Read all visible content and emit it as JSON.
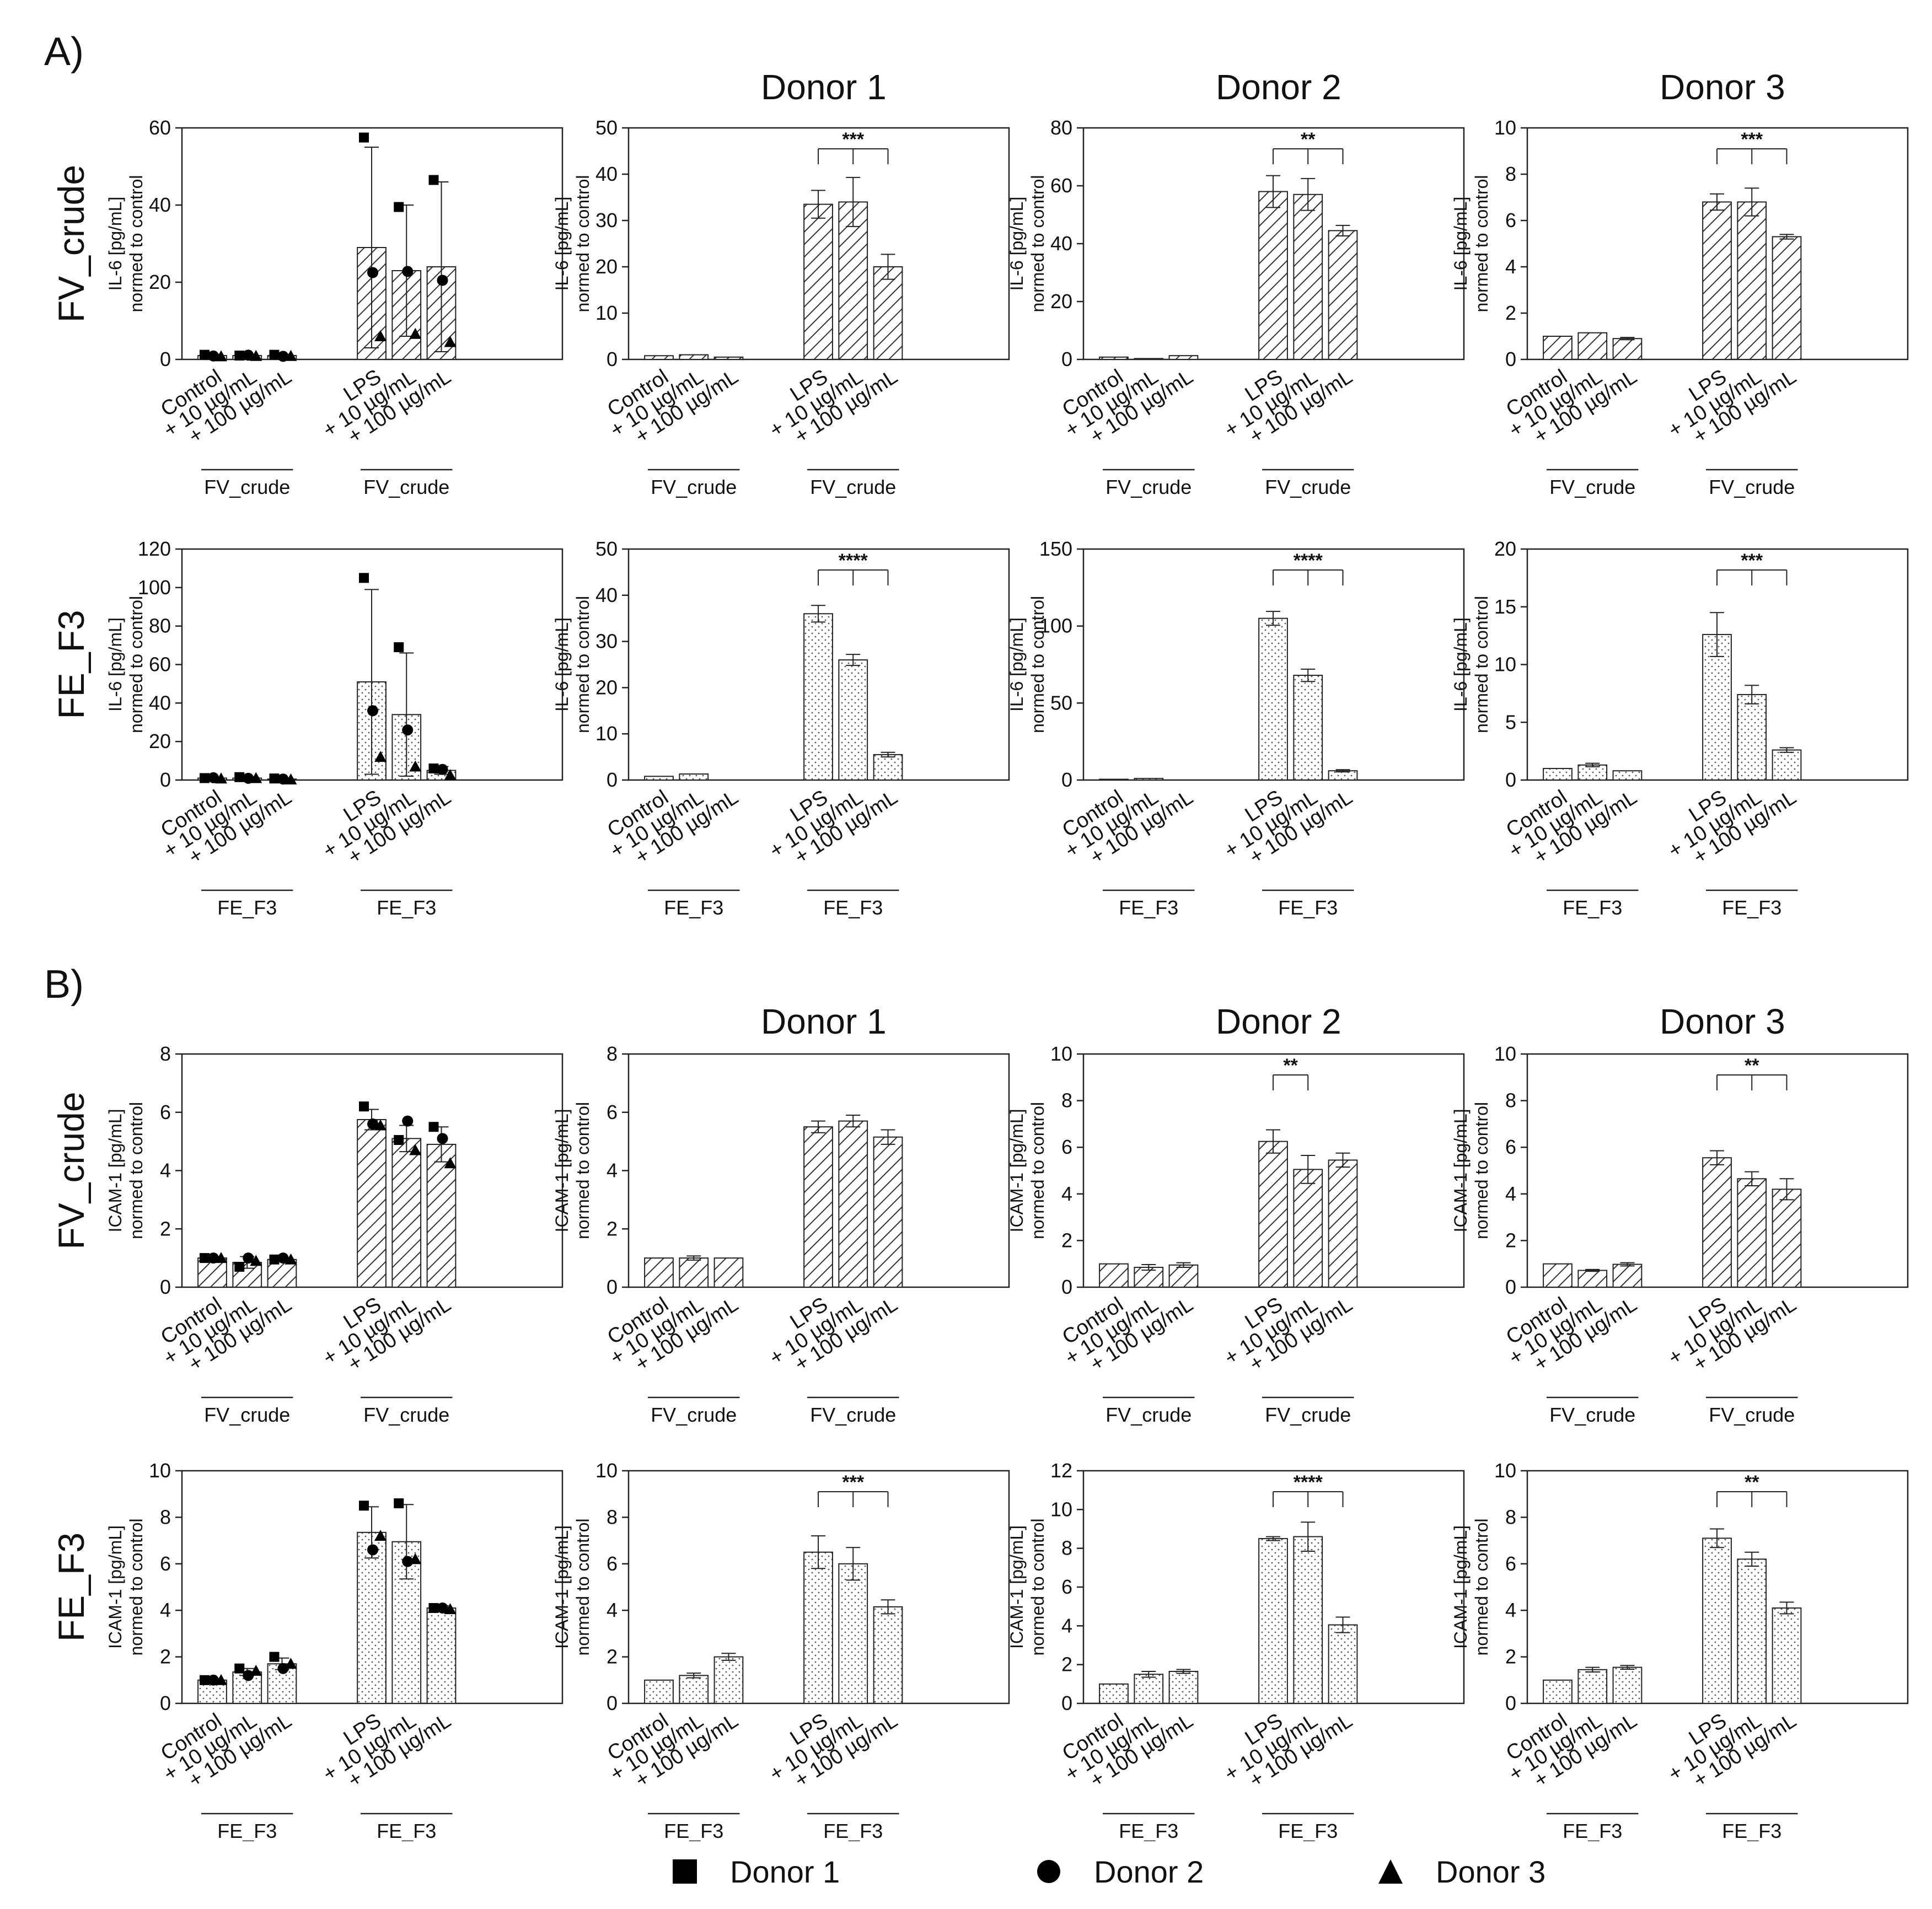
{
  "figure": {
    "section_labels": [
      "A)",
      "B)"
    ],
    "donor_titles": [
      "Donor 1",
      "Donor 2",
      "Donor 3"
    ],
    "row_labels": [
      "FV_crude",
      "FE_F3",
      "FV_crude",
      "FE_F3"
    ],
    "tick_categories": [
      "Control",
      "+ 10 µg/mL",
      "+ 100 µg/mL",
      "LPS",
      "+ 10 µg/mL",
      "+ 100 µg/mL"
    ],
    "ylabel_il6": [
      "IL-6 [pg/mL]",
      "normed to control"
    ],
    "ylabel_icam": [
      "ICAM-1 [pg/mL]",
      "normed to control"
    ]
  },
  "legend": [
    {
      "label": "Donor 1",
      "marker": "square"
    },
    {
      "label": "Donor 2",
      "marker": "circle"
    },
    {
      "label": "Donor 3",
      "marker": "triangle"
    }
  ],
  "colors": {
    "bar_edge": "#222222",
    "bar_fill": "#ffffff",
    "hatch": "#333333",
    "dots": "#555555",
    "marker": "#000000"
  },
  "chart_data": [
    {
      "type": "bar",
      "section": "A",
      "row": "FV_crude",
      "panel": "pooled",
      "pattern": "hatch",
      "ylim": [
        0,
        60
      ],
      "yticks": [
        0,
        20,
        40,
        60
      ],
      "group_label": "FV_crude",
      "values": [
        1,
        1,
        1,
        29,
        23,
        24
      ],
      "errors": [
        0.3,
        0.3,
        0.3,
        26,
        17,
        22
      ],
      "points": {
        "donor1": [
          1.2,
          1.0,
          1.2,
          57.5,
          39.5,
          46.5
        ],
        "donor2": [
          0.9,
          1.1,
          0.8,
          22.5,
          22.8,
          20.5
        ],
        "donor3": [
          0.8,
          0.9,
          0.9,
          6,
          6.6,
          4.5
        ]
      }
    },
    {
      "type": "bar",
      "section": "A",
      "row": "FV_crude",
      "panel": "Donor 1",
      "pattern": "hatch",
      "ylim": [
        0,
        50
      ],
      "yticks": [
        0,
        10,
        20,
        30,
        40,
        50
      ],
      "group_label": "FV_crude",
      "values": [
        0.8,
        1.0,
        0.5,
        33.5,
        34,
        20
      ],
      "errors": [
        0,
        0,
        0,
        3,
        5.3,
        2.7
      ],
      "significance": {
        "from": 3,
        "to": 5,
        "label": "***"
      }
    },
    {
      "type": "bar",
      "section": "A",
      "row": "FV_crude",
      "panel": "Donor 2",
      "pattern": "hatch",
      "ylim": [
        0,
        80
      ],
      "yticks": [
        0,
        20,
        40,
        60,
        80
      ],
      "group_label": "FV_crude",
      "values": [
        0.8,
        0.3,
        1.3,
        58,
        57,
        44.5
      ],
      "errors": [
        0,
        0,
        0,
        5.5,
        5.5,
        1.8
      ],
      "significance": {
        "from": 3,
        "to": 5,
        "label": "**"
      }
    },
    {
      "type": "bar",
      "section": "A",
      "row": "FV_crude",
      "panel": "Donor 3",
      "pattern": "hatch",
      "ylim": [
        0,
        10
      ],
      "yticks": [
        0,
        2,
        4,
        6,
        8,
        10
      ],
      "group_label": "FV_crude",
      "values": [
        1,
        1.15,
        0.9,
        6.8,
        6.8,
        5.3
      ],
      "errors": [
        0,
        0,
        0.05,
        0.35,
        0.6,
        0.1
      ],
      "significance": {
        "from": 3,
        "to": 5,
        "label": "***"
      }
    },
    {
      "type": "bar",
      "section": "A",
      "row": "FE_F3",
      "panel": "pooled",
      "pattern": "dots",
      "ylim": [
        0,
        120
      ],
      "yticks": [
        0,
        20,
        40,
        60,
        80,
        100,
        120
      ],
      "group_label": "FE_F3",
      "values": [
        1,
        1,
        0.5,
        51,
        34,
        5
      ],
      "errors": [
        0.3,
        0.3,
        0.3,
        48,
        32,
        2
      ],
      "points": {
        "donor1": [
          1,
          1.5,
          0.8,
          105,
          69,
          6
        ],
        "donor2": [
          1.2,
          0.9,
          0.5,
          36,
          26,
          5.5
        ],
        "donor3": [
          0.8,
          1,
          0.3,
          12,
          7,
          2.5
        ]
      }
    },
    {
      "type": "bar",
      "section": "A",
      "row": "FE_F3",
      "panel": "Donor 1",
      "pattern": "dots",
      "ylim": [
        0,
        50
      ],
      "yticks": [
        0,
        10,
        20,
        30,
        40,
        50
      ],
      "group_label": "FE_F3",
      "values": [
        0.8,
        1.3,
        0,
        36,
        26,
        5.5
      ],
      "errors": [
        0,
        0,
        0,
        1.8,
        1.2,
        0.5
      ],
      "significance": {
        "from": 3,
        "to": 5,
        "label": "****"
      }
    },
    {
      "type": "bar",
      "section": "A",
      "row": "FE_F3",
      "panel": "Donor 2",
      "pattern": "dots",
      "ylim": [
        0,
        150
      ],
      "yticks": [
        0,
        50,
        100,
        150
      ],
      "group_label": "FE_F3",
      "values": [
        0.5,
        1,
        0,
        105,
        68,
        6
      ],
      "errors": [
        0,
        0,
        0,
        4.5,
        4,
        0.7
      ],
      "significance": {
        "from": 3,
        "to": 5,
        "label": "****"
      }
    },
    {
      "type": "bar",
      "section": "A",
      "row": "FE_F3",
      "panel": "Donor 3",
      "pattern": "dots",
      "ylim": [
        0,
        20
      ],
      "yticks": [
        0,
        5,
        10,
        15,
        20
      ],
      "group_label": "FE_F3",
      "values": [
        1,
        1.3,
        0.8,
        12.6,
        7.4,
        2.6
      ],
      "errors": [
        0,
        0.15,
        0,
        1.9,
        0.8,
        0.2
      ],
      "significance": {
        "from": 3,
        "to": 5,
        "label": "***"
      }
    },
    {
      "type": "bar",
      "section": "B",
      "row": "FV_crude",
      "panel": "pooled",
      "pattern": "hatch",
      "ylim": [
        0,
        8
      ],
      "yticks": [
        0,
        2,
        4,
        6,
        8
      ],
      "group_label": "FV_crude",
      "values": [
        1,
        0.85,
        0.95,
        5.75,
        5.1,
        4.9
      ],
      "errors": [
        0.05,
        0.2,
        0.05,
        0.35,
        0.45,
        0.6
      ],
      "points": {
        "donor1": [
          1,
          0.7,
          0.95,
          6.2,
          5.05,
          5.5
        ],
        "donor2": [
          1,
          1,
          1,
          5.6,
          5.7,
          5.1
        ],
        "donor3": [
          1,
          0.9,
          0.95,
          5.55,
          4.7,
          4.25
        ]
      }
    },
    {
      "type": "bar",
      "section": "B",
      "row": "FV_crude",
      "panel": "Donor 1",
      "pattern": "hatch",
      "ylim": [
        0,
        8
      ],
      "yticks": [
        0,
        2,
        4,
        6,
        8
      ],
      "group_label": "FV_crude",
      "values": [
        1,
        1,
        1,
        5.5,
        5.7,
        5.15
      ],
      "errors": [
        0,
        0.07,
        0,
        0.2,
        0.2,
        0.25
      ]
    },
    {
      "type": "bar",
      "section": "B",
      "row": "FV_crude",
      "panel": "Donor 2",
      "pattern": "hatch",
      "ylim": [
        0,
        10
      ],
      "yticks": [
        0,
        2,
        4,
        6,
        8,
        10
      ],
      "group_label": "FV_crude",
      "values": [
        1,
        0.85,
        0.95,
        6.25,
        5.05,
        5.45
      ],
      "errors": [
        0,
        0.12,
        0.1,
        0.5,
        0.6,
        0.3
      ],
      "significance": {
        "from": 3,
        "to": 4,
        "label": "**"
      }
    },
    {
      "type": "bar",
      "section": "B",
      "row": "FV_crude",
      "panel": "Donor 3",
      "pattern": "hatch",
      "ylim": [
        0,
        10
      ],
      "yticks": [
        0,
        2,
        4,
        6,
        8,
        10
      ],
      "group_label": "FV_crude",
      "values": [
        1,
        0.72,
        0.98,
        5.55,
        4.65,
        4.2
      ],
      "errors": [
        0,
        0.04,
        0.07,
        0.3,
        0.3,
        0.45
      ],
      "significance": {
        "from": 3,
        "to": 5,
        "label": "**"
      }
    },
    {
      "type": "bar",
      "section": "B",
      "row": "FE_F3",
      "panel": "pooled",
      "pattern": "dots",
      "ylim": [
        0,
        10
      ],
      "yticks": [
        0,
        2,
        4,
        6,
        8,
        10
      ],
      "group_label": "FE_F3",
      "values": [
        1,
        1.35,
        1.7,
        7.35,
        6.95,
        4.1
      ],
      "errors": [
        0.05,
        0.15,
        0.25,
        1.1,
        1.6,
        0.1
      ],
      "points": {
        "donor1": [
          1,
          1.5,
          2,
          8.5,
          8.6,
          4.1
        ],
        "donor2": [
          1,
          1.2,
          1.5,
          6.6,
          6.1,
          4.1
        ],
        "donor3": [
          1,
          1.4,
          1.7,
          7.2,
          6.2,
          4.05
        ]
      }
    },
    {
      "type": "bar",
      "section": "B",
      "row": "FE_F3",
      "panel": "Donor 1",
      "pattern": "dots",
      "ylim": [
        0,
        10
      ],
      "yticks": [
        0,
        2,
        4,
        6,
        8,
        10
      ],
      "group_label": "FE_F3",
      "values": [
        1,
        1.2,
        2,
        6.5,
        6,
        4.15
      ],
      "errors": [
        0,
        0.1,
        0.15,
        0.7,
        0.7,
        0.3
      ],
      "significance": {
        "from": 3,
        "to": 5,
        "label": "***"
      }
    },
    {
      "type": "bar",
      "section": "B",
      "row": "FE_F3",
      "panel": "Donor 2",
      "pattern": "dots",
      "ylim": [
        0,
        12
      ],
      "yticks": [
        0,
        2,
        4,
        6,
        8,
        10,
        12
      ],
      "group_label": "FE_F3",
      "values": [
        1,
        1.5,
        1.65,
        8.5,
        8.6,
        4.05
      ],
      "errors": [
        0,
        0.15,
        0.1,
        0.1,
        0.75,
        0.4
      ],
      "significance": {
        "from": 3,
        "to": 5,
        "label": "****"
      }
    },
    {
      "type": "bar",
      "section": "B",
      "row": "FE_F3",
      "panel": "Donor 3",
      "pattern": "dots",
      "ylim": [
        0,
        10
      ],
      "yticks": [
        0,
        2,
        4,
        6,
        8,
        10
      ],
      "group_label": "FE_F3",
      "values": [
        1,
        1.45,
        1.55,
        7.1,
        6.2,
        4.1
      ],
      "errors": [
        0,
        0.1,
        0.08,
        0.4,
        0.3,
        0.25
      ],
      "significance": {
        "from": 3,
        "to": 5,
        "label": "**"
      }
    }
  ]
}
